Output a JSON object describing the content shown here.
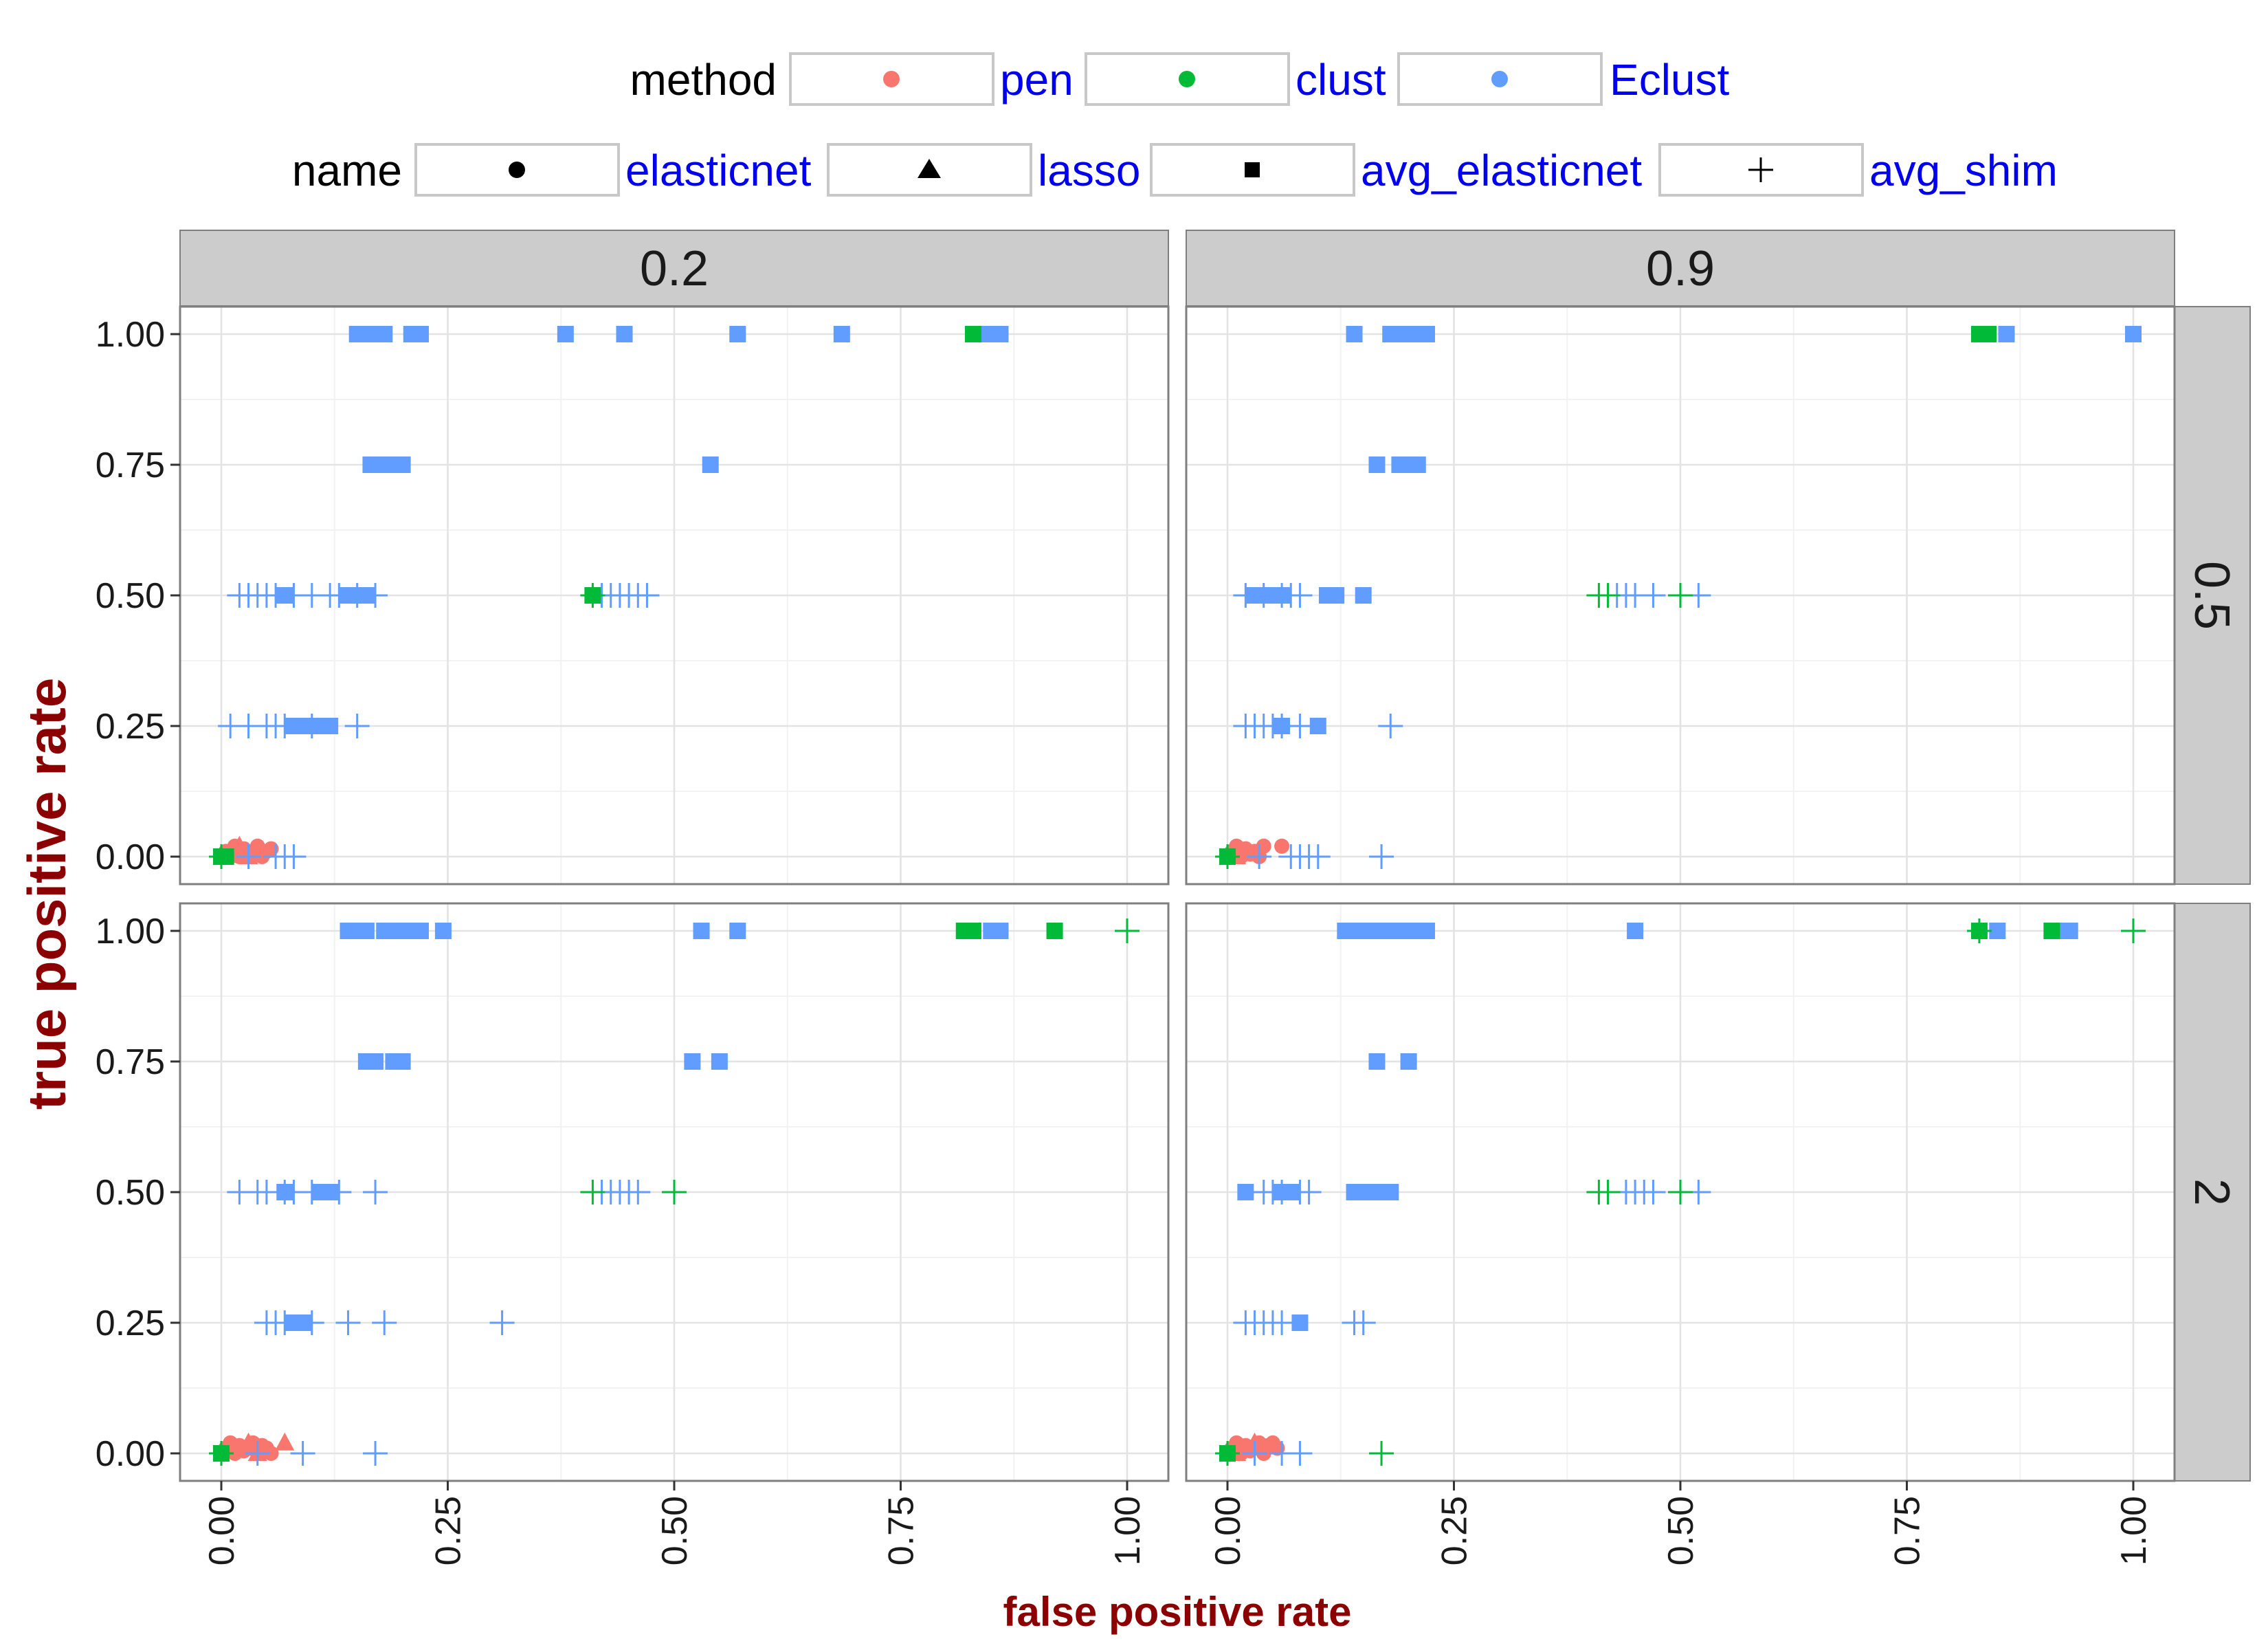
{
  "legend": {
    "method_title": "method",
    "name_title": "name",
    "methods": [
      {
        "label": "pen",
        "color": "#f8766d"
      },
      {
        "label": "clust",
        "color": "#00ba38"
      },
      {
        "label": "Eclust",
        "color": "#619cff"
      }
    ],
    "names": [
      {
        "label": "elasticnet",
        "shape": "circle"
      },
      {
        "label": "lasso",
        "shape": "triangle"
      },
      {
        "label": "avg_elasticnet",
        "shape": "square"
      },
      {
        "label": "avg_shim",
        "shape": "plus"
      }
    ]
  },
  "chart_data": {
    "type": "scatter",
    "xlabel": "false positive rate",
    "ylabel": "true positive rate",
    "xlim": [
      0,
      1
    ],
    "ylim": [
      0,
      1
    ],
    "x_ticks": [
      "0.00",
      "0.25",
      "0.50",
      "0.75",
      "1.00"
    ],
    "y_ticks": [
      "0.00",
      "0.25",
      "0.50",
      "0.75",
      "1.00"
    ],
    "grid": true,
    "legend_position": "top",
    "col_strips": [
      "0.2",
      "0.9"
    ],
    "row_strips": [
      "0.5",
      "2"
    ],
    "panels": [
      {
        "col": 0,
        "row": 0,
        "points": [
          {
            "m": "Eclust",
            "s": "square",
            "x": [
              0.15,
              0.16,
              0.165,
              0.17,
              0.18,
              0.21,
              0.22,
              0.38,
              0.445,
              0.57,
              0.685,
              0.84,
              0.85,
              0.86
            ],
            "y": 1.0
          },
          {
            "m": "clust",
            "s": "square",
            "x": [
              0.83
            ],
            "y": 1.0
          },
          {
            "m": "Eclust",
            "s": "square",
            "x": [
              0.165,
              0.17,
              0.18,
              0.19,
              0.2,
              0.54
            ],
            "y": 0.75
          },
          {
            "m": "Eclust",
            "s": "square",
            "x": [
              0.07,
              0.14,
              0.16
            ],
            "y": 0.5
          },
          {
            "m": "Eclust",
            "s": "plus",
            "x": [
              0.02,
              0.03,
              0.04,
              0.05,
              0.06,
              0.08,
              0.1,
              0.12,
              0.13,
              0.15,
              0.17,
              0.42,
              0.43,
              0.44,
              0.45,
              0.46,
              0.47
            ],
            "y": 0.5
          },
          {
            "m": "clust",
            "s": "square",
            "x": [
              0.41
            ],
            "y": 0.5
          },
          {
            "m": "clust",
            "s": "plus",
            "x": [
              0.41
            ],
            "y": 0.5
          },
          {
            "m": "Eclust",
            "s": "square",
            "x": [
              0.08,
              0.09,
              0.1,
              0.11,
              0.12
            ],
            "y": 0.25
          },
          {
            "m": "Eclust",
            "s": "plus",
            "x": [
              0.01,
              0.03,
              0.05,
              0.06,
              0.07,
              0.1,
              0.15
            ],
            "y": 0.25
          },
          {
            "m": "pen",
            "s": "circle",
            "x": [
              0.0,
              0.005,
              0.01,
              0.015,
              0.02,
              0.025,
              0.03,
              0.035,
              0.04,
              0.045,
              0.05,
              0.055
            ],
            "y": [
              0.0,
              0.01,
              0.0,
              0.02,
              0.0,
              0.015,
              0.005,
              0.01,
              0.02,
              0.0,
              0.01,
              0.015
            ]
          },
          {
            "m": "pen",
            "s": "triangle",
            "x": [
              0.01,
              0.02,
              0.03
            ],
            "y": [
              0.01,
              0.02,
              0.0
            ]
          },
          {
            "m": "Eclust",
            "s": "plus",
            "x": [
              0.03,
              0.06,
              0.07,
              0.08
            ],
            "y": 0.0
          },
          {
            "m": "clust",
            "s": "square",
            "x": [
              0.0,
              0.005
            ],
            "y": 0.0
          },
          {
            "m": "clust",
            "s": "plus",
            "x": [
              0.0
            ],
            "y": 0.0
          }
        ]
      },
      {
        "col": 1,
        "row": 0,
        "points": [
          {
            "m": "Eclust",
            "s": "square",
            "x": [
              0.14,
              0.18,
              0.19,
              0.2,
              0.21,
              0.22,
              0.86,
              1.0
            ],
            "y": 1.0
          },
          {
            "m": "clust",
            "s": "square",
            "x": [
              0.83,
              0.84
            ],
            "y": 1.0
          },
          {
            "m": "Eclust",
            "s": "square",
            "x": [
              0.165,
              0.19,
              0.2,
              0.21
            ],
            "y": 0.75
          },
          {
            "m": "Eclust",
            "s": "square",
            "x": [
              0.03,
              0.05,
              0.06,
              0.11,
              0.12,
              0.15
            ],
            "y": 0.5
          },
          {
            "m": "Eclust",
            "s": "plus",
            "x": [
              0.02,
              0.04,
              0.06,
              0.07,
              0.08,
              0.43,
              0.44,
              0.45,
              0.47,
              0.52
            ],
            "y": 0.5
          },
          {
            "m": "clust",
            "s": "plus",
            "x": [
              0.41,
              0.42,
              0.5
            ],
            "y": 0.5
          },
          {
            "m": "Eclust",
            "s": "square",
            "x": [
              0.06,
              0.1
            ],
            "y": 0.25
          },
          {
            "m": "Eclust",
            "s": "plus",
            "x": [
              0.02,
              0.03,
              0.04,
              0.05,
              0.06,
              0.08,
              0.18
            ],
            "y": 0.25
          },
          {
            "m": "pen",
            "s": "circle",
            "x": [
              0.0,
              0.005,
              0.01,
              0.015,
              0.02,
              0.025,
              0.03,
              0.035,
              0.04,
              0.06
            ],
            "y": [
              0.0,
              0.01,
              0.02,
              0.0,
              0.015,
              0.005,
              0.01,
              0.0,
              0.02,
              0.02
            ]
          },
          {
            "m": "pen",
            "s": "triangle",
            "x": [
              0.01,
              0.02
            ],
            "y": [
              0.0,
              0.01
            ]
          },
          {
            "m": "Eclust",
            "s": "plus",
            "x": [
              0.035,
              0.07,
              0.08,
              0.09,
              0.1,
              0.17
            ],
            "y": 0.0
          },
          {
            "m": "clust",
            "s": "square",
            "x": [
              0.0
            ],
            "y": 0.0
          },
          {
            "m": "clust",
            "s": "plus",
            "x": [
              0.0
            ],
            "y": 0.0
          }
        ]
      },
      {
        "col": 0,
        "row": 1,
        "points": [
          {
            "m": "Eclust",
            "s": "square",
            "x": [
              0.14,
              0.15,
              0.16,
              0.18,
              0.19,
              0.2,
              0.21,
              0.22,
              0.245,
              0.53,
              0.57,
              0.85,
              0.86
            ],
            "y": 1.0
          },
          {
            "m": "clust",
            "s": "square",
            "x": [
              0.82,
              0.83,
              0.92
            ],
            "y": 1.0
          },
          {
            "m": "clust",
            "s": "plus",
            "x": [
              1.0
            ],
            "y": 1.0
          },
          {
            "m": "Eclust",
            "s": "square",
            "x": [
              0.16,
              0.17,
              0.19,
              0.2,
              0.52,
              0.55
            ],
            "y": 0.75
          },
          {
            "m": "Eclust",
            "s": "square",
            "x": [
              0.07,
              0.11,
              0.12
            ],
            "y": 0.5
          },
          {
            "m": "Eclust",
            "s": "plus",
            "x": [
              0.02,
              0.04,
              0.05,
              0.07,
              0.08,
              0.1,
              0.13,
              0.17,
              0.42,
              0.43,
              0.44,
              0.45,
              0.46
            ],
            "y": 0.5
          },
          {
            "m": "clust",
            "s": "plus",
            "x": [
              0.41,
              0.5
            ],
            "y": 0.5
          },
          {
            "m": "Eclust",
            "s": "square",
            "x": [
              0.08,
              0.09
            ],
            "y": 0.25
          },
          {
            "m": "Eclust",
            "s": "plus",
            "x": [
              0.05,
              0.06,
              0.07,
              0.1,
              0.14,
              0.18,
              0.31
            ],
            "y": 0.25
          },
          {
            "m": "pen",
            "s": "circle",
            "x": [
              0.0,
              0.005,
              0.01,
              0.015,
              0.02,
              0.025,
              0.03,
              0.035,
              0.04,
              0.045,
              0.05,
              0.055
            ],
            "y": [
              0.0,
              0.01,
              0.02,
              0.0,
              0.015,
              0.005,
              0.01,
              0.02,
              0.0,
              0.015,
              0.01,
              0.0
            ]
          },
          {
            "m": "pen",
            "s": "triangle",
            "x": [
              0.02,
              0.03,
              0.04,
              0.07
            ],
            "y": [
              0.01,
              0.02,
              0.0,
              0.02
            ]
          },
          {
            "m": "Eclust",
            "s": "plus",
            "x": [
              0.04,
              0.09,
              0.17
            ],
            "y": 0.0
          },
          {
            "m": "clust",
            "s": "square",
            "x": [
              0.0
            ],
            "y": 0.0
          },
          {
            "m": "clust",
            "s": "plus",
            "x": [
              0.0
            ],
            "y": 0.0
          }
        ]
      },
      {
        "col": 1,
        "row": 1,
        "points": [
          {
            "m": "Eclust",
            "s": "square",
            "x": [
              0.13,
              0.14,
              0.15,
              0.16,
              0.17,
              0.18,
              0.19,
              0.2,
              0.21,
              0.22,
              0.45,
              0.85,
              0.92,
              0.93
            ],
            "y": 1.0
          },
          {
            "m": "clust",
            "s": "square",
            "x": [
              0.83,
              0.91
            ],
            "y": 1.0
          },
          {
            "m": "clust",
            "s": "plus",
            "x": [
              0.83,
              1.0
            ],
            "y": 1.0
          },
          {
            "m": "Eclust",
            "s": "square",
            "x": [
              0.165,
              0.2
            ],
            "y": 0.75
          },
          {
            "m": "Eclust",
            "s": "square",
            "x": [
              0.02,
              0.06,
              0.07,
              0.14,
              0.15,
              0.16,
              0.17,
              0.18
            ],
            "y": 0.5
          },
          {
            "m": "Eclust",
            "s": "plus",
            "x": [
              0.04,
              0.05,
              0.06,
              0.08,
              0.09,
              0.44,
              0.45,
              0.46,
              0.47,
              0.52
            ],
            "y": 0.5
          },
          {
            "m": "clust",
            "s": "plus",
            "x": [
              0.41,
              0.42,
              0.5
            ],
            "y": 0.5
          },
          {
            "m": "Eclust",
            "s": "square",
            "x": [
              0.08
            ],
            "y": 0.25
          },
          {
            "m": "Eclust",
            "s": "plus",
            "x": [
              0.02,
              0.03,
              0.04,
              0.05,
              0.06,
              0.14,
              0.15
            ],
            "y": 0.25
          },
          {
            "m": "pen",
            "s": "circle",
            "x": [
              0.0,
              0.005,
              0.01,
              0.015,
              0.02,
              0.025,
              0.03,
              0.035,
              0.04,
              0.045,
              0.05,
              0.055
            ],
            "y": [
              0.0,
              0.01,
              0.02,
              0.0,
              0.015,
              0.005,
              0.01,
              0.02,
              0.0,
              0.015,
              0.02,
              0.01
            ]
          },
          {
            "m": "pen",
            "s": "triangle",
            "x": [
              0.01,
              0.03
            ],
            "y": [
              0.0,
              0.02
            ]
          },
          {
            "m": "Eclust",
            "s": "plus",
            "x": [
              0.03,
              0.06,
              0.08
            ],
            "y": 0.0
          },
          {
            "m": "clust",
            "s": "square",
            "x": [
              0.0
            ],
            "y": 0.0
          },
          {
            "m": "clust",
            "s": "plus",
            "x": [
              0.0,
              0.17
            ],
            "y": 0.0
          }
        ]
      }
    ]
  }
}
